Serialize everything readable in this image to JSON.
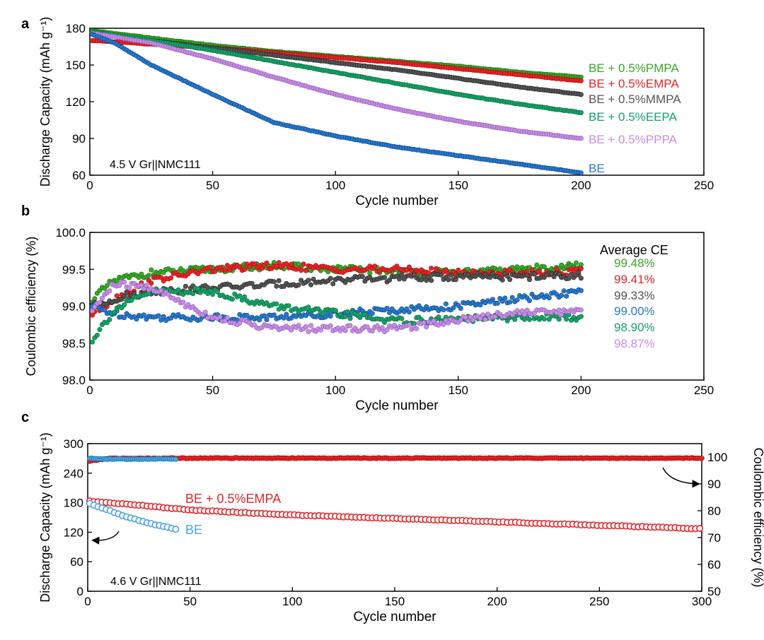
{
  "colors": {
    "pmpa": "#3aa62a",
    "empa": "#e3262a",
    "mmpa": "#555555",
    "eepa": "#17a06a",
    "pppa": "#c58de6",
    "be": "#2a78c8",
    "be_c": "#4aa3e0",
    "axis": "#000000"
  },
  "chart_data": [
    {
      "id": "a",
      "panel_label": "a",
      "type": "scatter",
      "title": "",
      "xlabel": "Cycle number",
      "ylabel": "Discharge Capacity (mAh g⁻¹)",
      "xlim": [
        0,
        250
      ],
      "ylim": [
        60,
        180
      ],
      "xticks": [
        0,
        50,
        100,
        150,
        200,
        250
      ],
      "yticks": [
        60,
        90,
        120,
        150,
        180
      ],
      "annotation": "4.5 V Gr||NMC111",
      "grid": false,
      "series": [
        {
          "name": "BE + 0.5%PMPA",
          "color_key": "pmpa",
          "x": [
            1,
            25,
            50,
            75,
            100,
            125,
            150,
            175,
            200
          ],
          "y": [
            178,
            172,
            166,
            161,
            157,
            153,
            149,
            144,
            140
          ]
        },
        {
          "name": "BE + 0.5%EMPA",
          "color_key": "empa",
          "x": [
            1,
            25,
            50,
            75,
            100,
            125,
            150,
            175,
            200
          ],
          "y": [
            170,
            167,
            164,
            160,
            156,
            152,
            147,
            142,
            137
          ]
        },
        {
          "name": "BE + 0.5%MMPA",
          "color_key": "mmpa",
          "x": [
            1,
            25,
            50,
            75,
            100,
            125,
            150,
            175,
            200
          ],
          "y": [
            176,
            170,
            164,
            158,
            152,
            146,
            139,
            132,
            126
          ]
        },
        {
          "name": "BE + 0.5%EEPA",
          "color_key": "eepa",
          "x": [
            1,
            25,
            50,
            75,
            100,
            125,
            150,
            175,
            200
          ],
          "y": [
            177,
            170,
            162,
            153,
            144,
            135,
            126,
            118,
            111
          ]
        },
        {
          "name": "BE + 0.5%PPPA",
          "color_key": "pppa",
          "x": [
            1,
            25,
            50,
            75,
            100,
            125,
            150,
            175,
            200
          ],
          "y": [
            176,
            168,
            155,
            140,
            126,
            114,
            104,
            96,
            90
          ]
        },
        {
          "name": "BE",
          "color_key": "be",
          "x": [
            1,
            10,
            25,
            50,
            75,
            100,
            125,
            150,
            175,
            200
          ],
          "y": [
            175,
            168,
            150,
            126,
            103,
            92,
            83,
            76,
            69,
            62
          ]
        }
      ]
    },
    {
      "id": "b",
      "panel_label": "b",
      "type": "scatter",
      "title": "",
      "xlabel": "Cycle number",
      "ylabel": "Coulombic efficiency (%)",
      "xlim": [
        0,
        250
      ],
      "ylim": [
        98.0,
        100.0
      ],
      "xticks": [
        0,
        50,
        100,
        150,
        200,
        250
      ],
      "yticks": [
        "98.0",
        "98.5",
        "99.0",
        "99.5",
        "100.0"
      ],
      "legend_title": "Average CE",
      "grid": false,
      "series": [
        {
          "name": "99.48%",
          "color_key": "pmpa",
          "x": [
            1,
            10,
            25,
            50,
            75,
            100,
            125,
            150,
            175,
            200
          ],
          "y": [
            99.1,
            99.35,
            99.45,
            99.5,
            99.55,
            99.5,
            99.48,
            99.45,
            99.5,
            99.55
          ]
        },
        {
          "name": "99.41%",
          "color_key": "empa",
          "x": [
            1,
            10,
            25,
            50,
            75,
            100,
            125,
            150,
            175,
            200
          ],
          "y": [
            98.9,
            99.1,
            99.35,
            99.5,
            99.55,
            99.5,
            99.5,
            99.45,
            99.45,
            99.47
          ]
        },
        {
          "name": "99.33%",
          "color_key": "mmpa",
          "x": [
            1,
            10,
            25,
            50,
            75,
            100,
            125,
            150,
            175,
            200
          ],
          "y": [
            99.0,
            99.1,
            99.2,
            99.25,
            99.3,
            99.35,
            99.38,
            99.4,
            99.4,
            99.42
          ]
        },
        {
          "name": "99.00%",
          "color_key": "be",
          "x": [
            1,
            10,
            25,
            50,
            75,
            100,
            125,
            150,
            175,
            200
          ],
          "y": [
            99.0,
            98.9,
            98.85,
            98.85,
            98.85,
            98.9,
            98.95,
            99.0,
            99.1,
            99.2
          ]
        },
        {
          "name": "98.90%",
          "color_key": "eepa",
          "x": [
            1,
            10,
            25,
            50,
            75,
            100,
            125,
            150,
            175,
            200
          ],
          "y": [
            98.55,
            98.95,
            99.2,
            99.2,
            99.0,
            98.9,
            98.8,
            98.82,
            98.85,
            98.85
          ]
        },
        {
          "name": "98.87%",
          "color_key": "pppa",
          "x": [
            1,
            10,
            25,
            50,
            75,
            100,
            125,
            150,
            175,
            200
          ],
          "y": [
            98.95,
            99.3,
            99.25,
            98.85,
            98.7,
            98.7,
            98.7,
            98.82,
            98.92,
            98.93
          ]
        }
      ]
    },
    {
      "id": "c",
      "panel_label": "c",
      "type": "scatter",
      "title": "",
      "xlabel": "Cycle number",
      "ylabel": "Discharge Capacity (mAh g⁻¹)",
      "ylabel_right": "Coulombic efficiency (%)",
      "xlim": [
        0,
        300
      ],
      "ylim": [
        0,
        300
      ],
      "ylim_right": [
        50,
        105
      ],
      "xticks": [
        0,
        50,
        100,
        150,
        200,
        250,
        300
      ],
      "yticks": [
        0,
        60,
        120,
        180,
        240,
        300
      ],
      "yticks_right": [
        50,
        60,
        70,
        80,
        90,
        100
      ],
      "annotation": "4.6 V Gr||NMC111",
      "label_empa": "BE + 0.5%EMPA",
      "label_be": "BE",
      "grid": false,
      "series": [
        {
          "name": "BE + 0.5%EMPA capacity",
          "color_key": "empa",
          "axis": "left",
          "x": [
            1,
            25,
            50,
            100,
            150,
            200,
            250,
            300
          ],
          "y": [
            183,
            175,
            165,
            155,
            148,
            141,
            134,
            127
          ]
        },
        {
          "name": "BE capacity",
          "color_key": "be_c",
          "axis": "left",
          "x": [
            1,
            10,
            20,
            30,
            43
          ],
          "y": [
            178,
            165,
            150,
            138,
            126
          ]
        },
        {
          "name": "BE + 0.5%EMPA CE",
          "color_key": "empa",
          "axis": "right",
          "x": [
            1,
            10,
            25,
            50,
            100,
            150,
            200,
            250,
            300
          ],
          "y": [
            98.5,
            99.5,
            99.5,
            99.6,
            99.6,
            99.6,
            99.6,
            99.6,
            99.6
          ]
        },
        {
          "name": "BE CE",
          "color_key": "be_c",
          "axis": "right",
          "x": [
            1,
            10,
            20,
            30,
            43
          ],
          "y": [
            99.5,
            99.3,
            99.2,
            99.3,
            99.3
          ]
        }
      ]
    }
  ]
}
